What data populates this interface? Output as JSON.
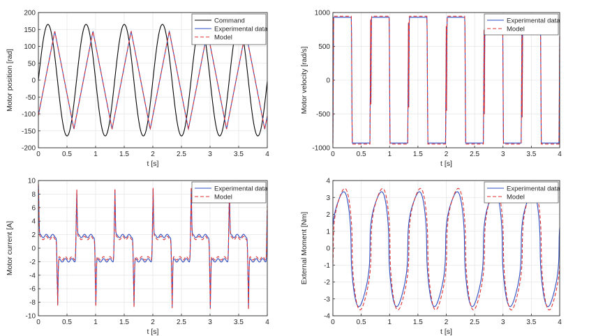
{
  "chart_data": [
    {
      "id": "position",
      "type": "line",
      "title": "",
      "xlabel": "t [s]",
      "ylabel": "Motor position [rad]",
      "xlim": [
        0,
        4
      ],
      "ylim": [
        -200,
        200
      ],
      "xticks": [
        "0",
        "0.5",
        "1",
        "1.5",
        "2",
        "2.5",
        "3",
        "3.5",
        "4"
      ],
      "yticks": [
        "-200",
        "-150",
        "-100",
        "-50",
        "0",
        "50",
        "100",
        "150",
        "200"
      ],
      "grid": true,
      "legend_position": "top-right",
      "series": [
        {
          "name": "Command",
          "color": "#000000",
          "style": "solid",
          "waveform": "sine",
          "amplitude": 165,
          "period": 0.667,
          "phase_s": 0.0,
          "offset": 0
        },
        {
          "name": "Experimental data",
          "color": "#2b4bbf",
          "style": "solid",
          "waveform": "triangle",
          "amplitude": 145,
          "period": 0.667,
          "phase_s": 0.12,
          "offset": 0
        },
        {
          "name": "Model",
          "color": "#e03030",
          "style": "dashed",
          "waveform": "triangle",
          "amplitude": 145,
          "period": 0.667,
          "phase_s": 0.12,
          "offset": 0
        }
      ]
    },
    {
      "id": "velocity",
      "type": "line",
      "title": "",
      "xlabel": "t [s]",
      "ylabel": "Motor velocity [rad/s]",
      "xlim": [
        0,
        4
      ],
      "ylim": [
        -1000,
        1000
      ],
      "xticks": [
        "0",
        "0.5",
        "1",
        "1.5",
        "2",
        "2.5",
        "3",
        "3.5",
        "4"
      ],
      "yticks": [
        "-1000",
        "-500",
        "0",
        "500",
        "1000"
      ],
      "grid": true,
      "legend_position": "top-right",
      "series": [
        {
          "name": "Experimental data",
          "color": "#2b4bbf",
          "style": "solid",
          "waveform": "square",
          "amplitude": 930,
          "period": 0.667,
          "phase_s": 0.0,
          "offset": 0
        },
        {
          "name": "Model",
          "color": "#e03030",
          "style": "dashed",
          "waveform": "square",
          "amplitude": 945,
          "period": 0.667,
          "phase_s": 0.0,
          "offset": 0
        }
      ]
    },
    {
      "id": "current",
      "type": "line",
      "title": "",
      "xlabel": "t [s]",
      "ylabel": "Motor current [A]",
      "xlim": [
        0,
        4
      ],
      "ylim": [
        -10,
        10
      ],
      "xticks": [
        "0",
        "0.5",
        "1",
        "1.5",
        "2",
        "2.5",
        "3",
        "3.5",
        "4"
      ],
      "yticks": [
        "-10",
        "-8",
        "-6",
        "-4",
        "-2",
        "0",
        "2",
        "4",
        "6",
        "8",
        "10"
      ],
      "grid": true,
      "legend_position": "top-right",
      "series": [
        {
          "name": "Experimental data",
          "color": "#2b4bbf",
          "style": "solid",
          "waveform": "spikes",
          "amplitude": 1.8,
          "spike": 7.5,
          "period": 0.667,
          "phase_s": 0.0,
          "offset": 0
        },
        {
          "name": "Model",
          "color": "#e03030",
          "style": "dashed",
          "waveform": "spikes",
          "amplitude": 1.5,
          "spike": 8.0,
          "period": 0.667,
          "phase_s": 0.0,
          "offset": 0
        }
      ]
    },
    {
      "id": "moment",
      "type": "line",
      "title": "",
      "xlabel": "t [s]",
      "ylabel": "External Moment [Nm]",
      "xlim": [
        0,
        4
      ],
      "ylim": [
        -4,
        4
      ],
      "xticks": [
        "0",
        "0.5",
        "1",
        "1.5",
        "2",
        "2.5",
        "3",
        "3.5",
        "4"
      ],
      "yticks": [
        "-4",
        "-3",
        "-2",
        "-1",
        "0",
        "1",
        "2",
        "3",
        "4"
      ],
      "grid": true,
      "legend_position": "top-right",
      "series": [
        {
          "name": "Experimental data",
          "color": "#2b4bbf",
          "style": "solid",
          "waveform": "moment",
          "amplitude": 3.3,
          "period": 0.667,
          "phase_s": 0.0,
          "offset": 0
        },
        {
          "name": "Model",
          "color": "#e03030",
          "style": "dashed",
          "waveform": "moment",
          "amplitude": 3.5,
          "period": 0.667,
          "phase_s": 0.02,
          "offset": 0
        }
      ]
    }
  ]
}
